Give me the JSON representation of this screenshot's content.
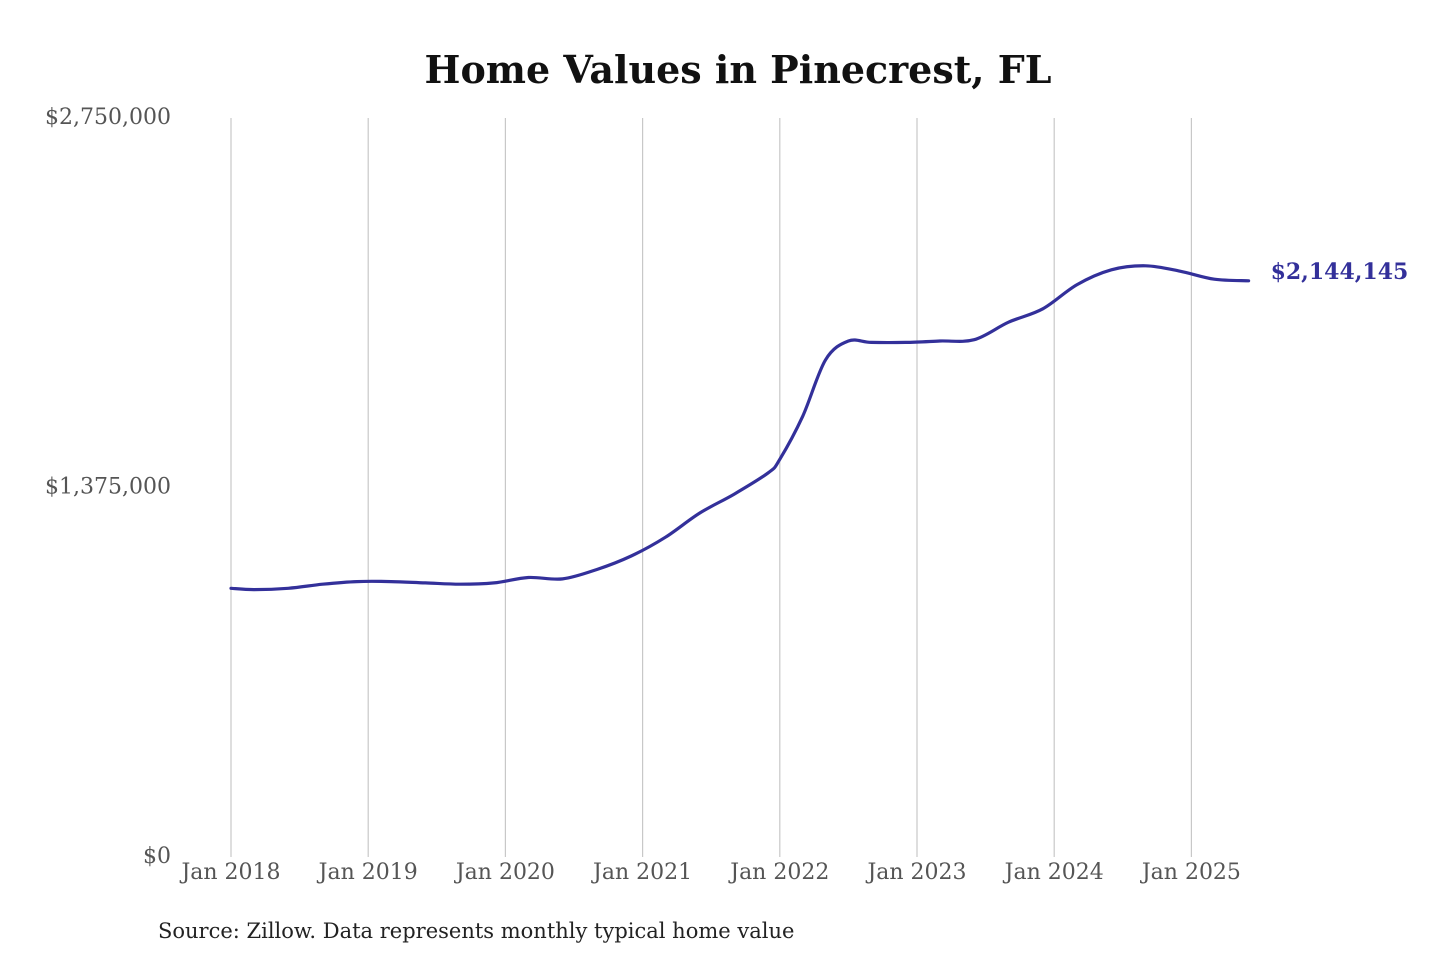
{
  "chart_data": {
    "type": "line",
    "title": "Home Values in Pinecrest, FL",
    "xlabel": "",
    "ylabel": "",
    "source_note": "Source: Zillow. Data represents monthly typical home value",
    "ylim": [
      0,
      2750000
    ],
    "y_ticks": [
      {
        "value": 0,
        "label": "$0"
      },
      {
        "value": 1375000,
        "label": "$1,375,000"
      },
      {
        "value": 2750000,
        "label": "$2,750,000"
      }
    ],
    "x_ticks": [
      {
        "value": "2018-01",
        "label": "Jan 2018"
      },
      {
        "value": "2019-01",
        "label": "Jan 2019"
      },
      {
        "value": "2020-01",
        "label": "Jan 2020"
      },
      {
        "value": "2021-01",
        "label": "Jan 2021"
      },
      {
        "value": "2022-01",
        "label": "Jan 2022"
      },
      {
        "value": "2023-01",
        "label": "Jan 2023"
      },
      {
        "value": "2024-01",
        "label": "Jan 2024"
      },
      {
        "value": "2025-01",
        "label": "Jan 2025"
      }
    ],
    "xlim": [
      "2018-01",
      "2025-06"
    ],
    "grid": "vertical",
    "line_color": "#33309a",
    "end_label": "$2,144,145",
    "series": [
      {
        "x": [
          "2018-01",
          "2018-03",
          "2018-06",
          "2018-09",
          "2018-12",
          "2019-03",
          "2019-06",
          "2019-09",
          "2019-12",
          "2020-03",
          "2020-06",
          "2020-09",
          "2020-12",
          "2021-03",
          "2021-06",
          "2021-09",
          "2021-12",
          "2022-01",
          "2022-03",
          "2022-05",
          "2022-07",
          "2022-09",
          "2022-12",
          "2023-03",
          "2023-06",
          "2023-09",
          "2023-12",
          "2024-03",
          "2024-06",
          "2024-09",
          "2024-12",
          "2025-03",
          "2025-06"
        ],
        "values": [
          1000000,
          995000,
          1000000,
          1015000,
          1025000,
          1025000,
          1020000,
          1015000,
          1020000,
          1040000,
          1035000,
          1070000,
          1120000,
          1190000,
          1280000,
          1350000,
          1430000,
          1480000,
          1640000,
          1850000,
          1920000,
          1915000,
          1915000,
          1920000,
          1925000,
          1990000,
          2040000,
          2130000,
          2185000,
          2200000,
          2180000,
          2150000,
          2144145
        ]
      }
    ]
  }
}
